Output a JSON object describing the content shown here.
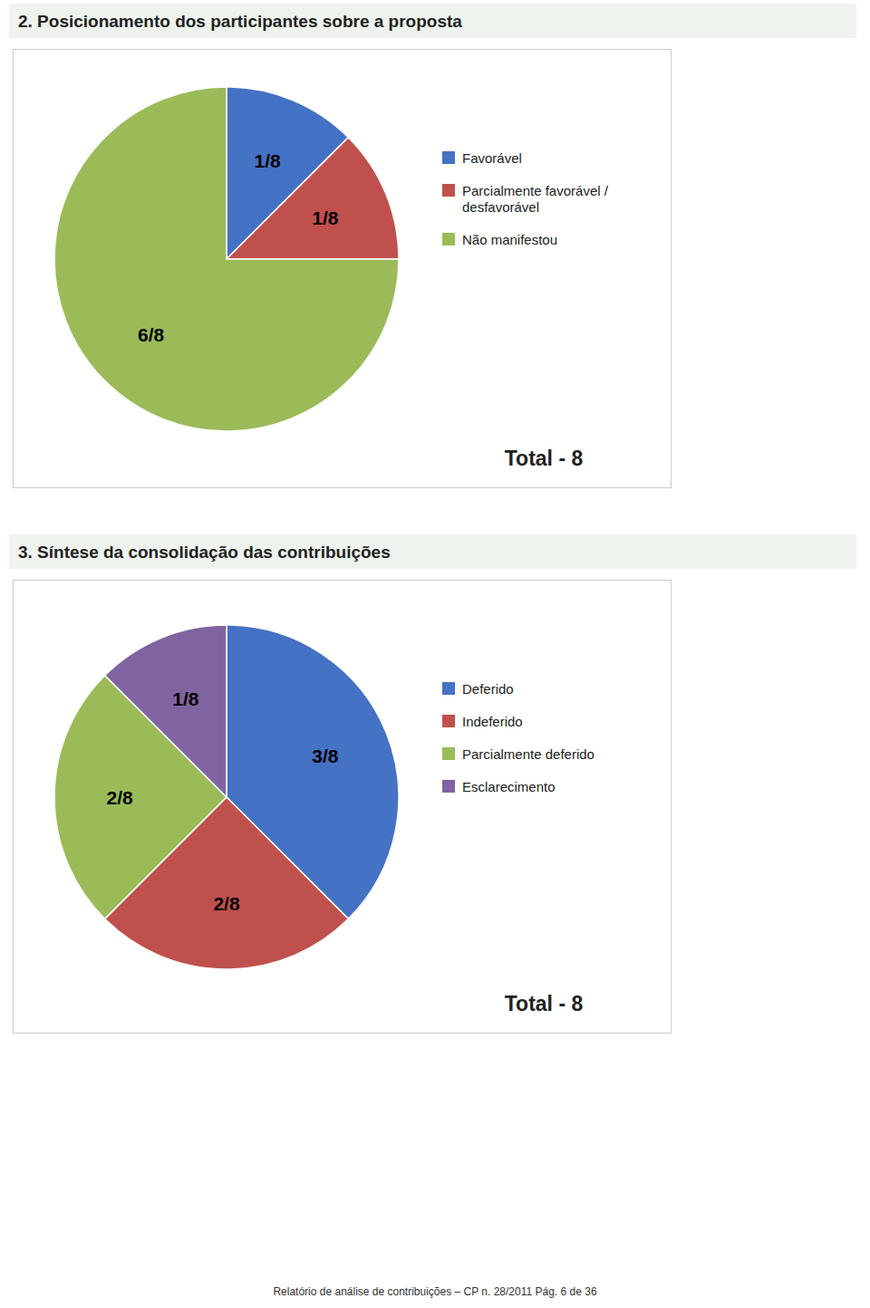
{
  "chart_data": [
    {
      "type": "pie",
      "title": "2. Posicionamento dos participantes sobre a proposta",
      "categories": [
        "Favorável",
        "Parcialmente favorável /\ndesfavorável",
        "Não manifestou"
      ],
      "values": [
        1,
        1,
        6
      ],
      "value_labels": [
        "1/8",
        "1/8",
        "6/8"
      ],
      "data_labels": true,
      "colors": [
        "#4472c4",
        "#c0504d",
        "#9bbb59"
      ],
      "legend": "right",
      "annotation": "Total - 8"
    },
    {
      "type": "pie",
      "title": "3. Síntese da consolidação das contribuições",
      "categories": [
        "Deferido",
        "Indeferido",
        "Parcialmente deferido",
        "Esclarecimento"
      ],
      "values": [
        3,
        2,
        2,
        1
      ],
      "value_labels": [
        "3/8",
        "2/8",
        "2/8",
        "1/8"
      ],
      "data_labels": true,
      "colors": [
        "#4472c4",
        "#c0504d",
        "#9bbb59",
        "#8064a2"
      ],
      "legend": "right",
      "annotation": "Total - 8"
    }
  ],
  "footer": "Relatório de análise de contribuições – CP n. 28/2011    Pág. 6 de 36"
}
